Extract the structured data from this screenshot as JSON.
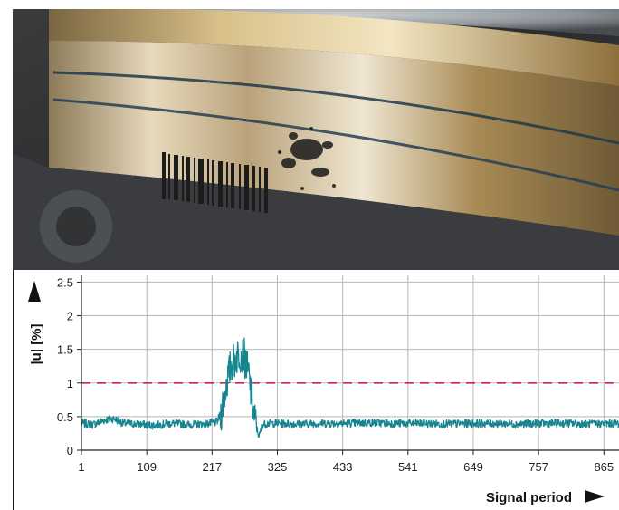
{
  "photo": {
    "subject": "bearing ring with barcode marking and surface damage",
    "colors": {
      "ring_gold": "#b08a48",
      "ring_silver": "#c9c4bb",
      "background": "#2d2f31"
    }
  },
  "chart_data": {
    "type": "line",
    "title": "",
    "xlabel": "Signal period",
    "ylabel": "|u| [%]",
    "xlim": [
      1,
      890
    ],
    "ylim": [
      0,
      2.6
    ],
    "x_ticks": [
      "1",
      "109",
      "217",
      "325",
      "433",
      "541",
      "649",
      "757",
      "865"
    ],
    "y_ticks": [
      "0",
      "0.5",
      "1",
      "1.5",
      "2",
      "2.5"
    ],
    "grid": true,
    "threshold": {
      "value": 1.0,
      "style": "dashed",
      "color": "#d81b60"
    },
    "series": [
      {
        "color": "#16858f",
        "x": [
          1,
          20,
          40,
          55,
          70,
          90,
          120,
          150,
          180,
          200,
          215,
          225,
          232,
          240,
          248,
          255,
          262,
          270,
          278,
          285,
          290,
          295,
          300,
          310,
          330,
          360,
          400,
          440,
          480,
          520,
          560,
          600,
          640,
          680,
          720,
          760,
          800,
          840,
          880,
          890
        ],
        "y": [
          0.4,
          0.38,
          0.45,
          0.47,
          0.4,
          0.39,
          0.37,
          0.4,
          0.38,
          0.39,
          0.4,
          0.42,
          0.55,
          0.95,
          1.25,
          1.35,
          1.45,
          1.4,
          1.1,
          0.6,
          0.35,
          0.2,
          0.38,
          0.4,
          0.4,
          0.39,
          0.4,
          0.4,
          0.41,
          0.4,
          0.4,
          0.39,
          0.4,
          0.4,
          0.39,
          0.4,
          0.4,
          0.39,
          0.4,
          0.4
        ]
      }
    ],
    "axis_arrows": true
  }
}
